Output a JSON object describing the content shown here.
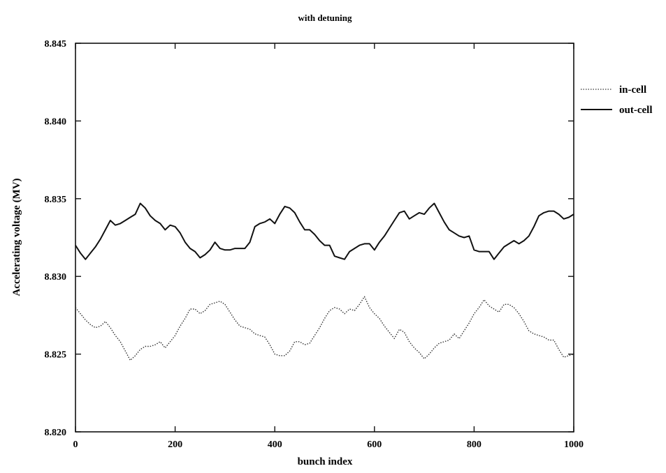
{
  "chart_data": {
    "type": "line",
    "title": "with detuning",
    "xlabel": "bunch index",
    "ylabel": "Accelerating voltage (MV)",
    "xlim": [
      0,
      1000
    ],
    "ylim": [
      8.82,
      8.845
    ],
    "xticks": [
      0,
      200,
      400,
      600,
      800,
      1000
    ],
    "xtick_labels": [
      "0",
      "200",
      "400",
      "600",
      "800",
      "1000"
    ],
    "yticks": [
      8.82,
      8.825,
      8.83,
      8.835,
      8.84,
      8.845
    ],
    "ytick_labels": [
      "8.820",
      "8.825",
      "8.830",
      "8.835",
      "8.840",
      "8.845"
    ],
    "grid": false,
    "legend_position": "right, outside plot area",
    "series": [
      {
        "name": "in-cell",
        "style": "dotted",
        "color": "#333333",
        "x": [
          0,
          10,
          20,
          30,
          40,
          50,
          60,
          70,
          80,
          90,
          100,
          110,
          120,
          130,
          140,
          150,
          160,
          170,
          180,
          190,
          200,
          210,
          220,
          230,
          240,
          250,
          260,
          270,
          280,
          290,
          300,
          310,
          320,
          330,
          340,
          350,
          360,
          370,
          380,
          390,
          400,
          410,
          420,
          430,
          440,
          450,
          460,
          470,
          480,
          490,
          500,
          510,
          520,
          530,
          540,
          550,
          560,
          570,
          580,
          590,
          600,
          610,
          620,
          630,
          640,
          650,
          660,
          670,
          680,
          690,
          700,
          710,
          720,
          730,
          740,
          750,
          760,
          770,
          780,
          790,
          800,
          810,
          820,
          830,
          840,
          850,
          860,
          870,
          880,
          890,
          900,
          910,
          920,
          930,
          940,
          950,
          960,
          970,
          980,
          990,
          1000
        ],
        "y": [
          8.828,
          8.8276,
          8.8272,
          8.8269,
          8.8267,
          8.8268,
          8.8271,
          8.8267,
          8.8262,
          8.8258,
          8.8252,
          8.8246,
          8.8249,
          8.8253,
          8.8255,
          8.8255,
          8.8256,
          8.8258,
          8.8254,
          8.8258,
          8.8262,
          8.8268,
          8.8273,
          8.8279,
          8.8279,
          8.8276,
          8.8278,
          8.8282,
          8.8283,
          8.8284,
          8.8282,
          8.8277,
          8.8272,
          8.8268,
          8.8267,
          8.8266,
          8.8263,
          8.8262,
          8.8261,
          8.8256,
          8.825,
          8.8249,
          8.8249,
          8.8252,
          8.8258,
          8.8258,
          8.8256,
          8.8257,
          8.8262,
          8.8267,
          8.8273,
          8.8278,
          8.828,
          8.8279,
          8.8276,
          8.8279,
          8.8278,
          8.8282,
          8.8287,
          8.828,
          8.8276,
          8.8273,
          8.8268,
          8.8264,
          8.826,
          8.8266,
          8.8264,
          8.8258,
          8.8254,
          8.8251,
          8.8247,
          8.825,
          8.8254,
          8.8257,
          8.8258,
          8.8259,
          8.8263,
          8.826,
          8.8265,
          8.827,
          8.8276,
          8.828,
          8.8285,
          8.8281,
          8.8279,
          8.8277,
          8.8282,
          8.8282,
          8.828,
          8.8276,
          8.8271,
          8.8265,
          8.8263,
          8.8262,
          8.8261,
          8.8259,
          8.8259,
          8.8253,
          8.8248,
          8.8249,
          8.825
        ]
      },
      {
        "name": "out-cell",
        "style": "solid",
        "color": "#111111",
        "x": [
          0,
          10,
          20,
          30,
          40,
          50,
          60,
          70,
          80,
          90,
          100,
          110,
          120,
          130,
          140,
          150,
          160,
          170,
          180,
          190,
          200,
          210,
          220,
          230,
          240,
          250,
          260,
          270,
          280,
          290,
          300,
          310,
          320,
          330,
          340,
          350,
          360,
          370,
          380,
          390,
          400,
          410,
          420,
          430,
          440,
          450,
          460,
          470,
          480,
          490,
          500,
          510,
          520,
          530,
          540,
          550,
          560,
          570,
          580,
          590,
          600,
          610,
          620,
          630,
          640,
          650,
          660,
          670,
          680,
          690,
          700,
          710,
          720,
          730,
          740,
          750,
          760,
          770,
          780,
          790,
          800,
          810,
          820,
          830,
          840,
          850,
          860,
          870,
          880,
          890,
          900,
          910,
          920,
          930,
          940,
          950,
          960,
          970,
          980,
          990,
          1000
        ],
        "y": [
          8.832,
          8.8315,
          8.8311,
          8.8315,
          8.8319,
          8.8324,
          8.833,
          8.8336,
          8.8333,
          8.8334,
          8.8336,
          8.8338,
          8.834,
          8.8347,
          8.8344,
          8.8339,
          8.8336,
          8.8334,
          8.833,
          8.8333,
          8.8332,
          8.8328,
          8.8322,
          8.8318,
          8.8316,
          8.8312,
          8.8314,
          8.8317,
          8.8322,
          8.8318,
          8.8317,
          8.8317,
          8.8318,
          8.8318,
          8.8318,
          8.8322,
          8.8332,
          8.8334,
          8.8335,
          8.8337,
          8.8334,
          8.834,
          8.8345,
          8.8344,
          8.8341,
          8.8335,
          8.833,
          8.833,
          8.8327,
          8.8323,
          8.832,
          8.832,
          8.8313,
          8.8312,
          8.8311,
          8.8316,
          8.8318,
          8.832,
          8.8321,
          8.8321,
          8.8317,
          8.8322,
          8.8326,
          8.8331,
          8.8336,
          8.8341,
          8.8342,
          8.8337,
          8.8339,
          8.8341,
          8.834,
          8.8344,
          8.8347,
          8.8341,
          8.8335,
          8.833,
          8.8328,
          8.8326,
          8.8325,
          8.8326,
          8.8317,
          8.8316,
          8.8316,
          8.8316,
          8.8311,
          8.8315,
          8.8319,
          8.8321,
          8.8323,
          8.8321,
          8.8323,
          8.8326,
          8.8332,
          8.8339,
          8.8341,
          8.8342,
          8.8342,
          8.834,
          8.8337,
          8.8338,
          8.834
        ]
      }
    ]
  }
}
